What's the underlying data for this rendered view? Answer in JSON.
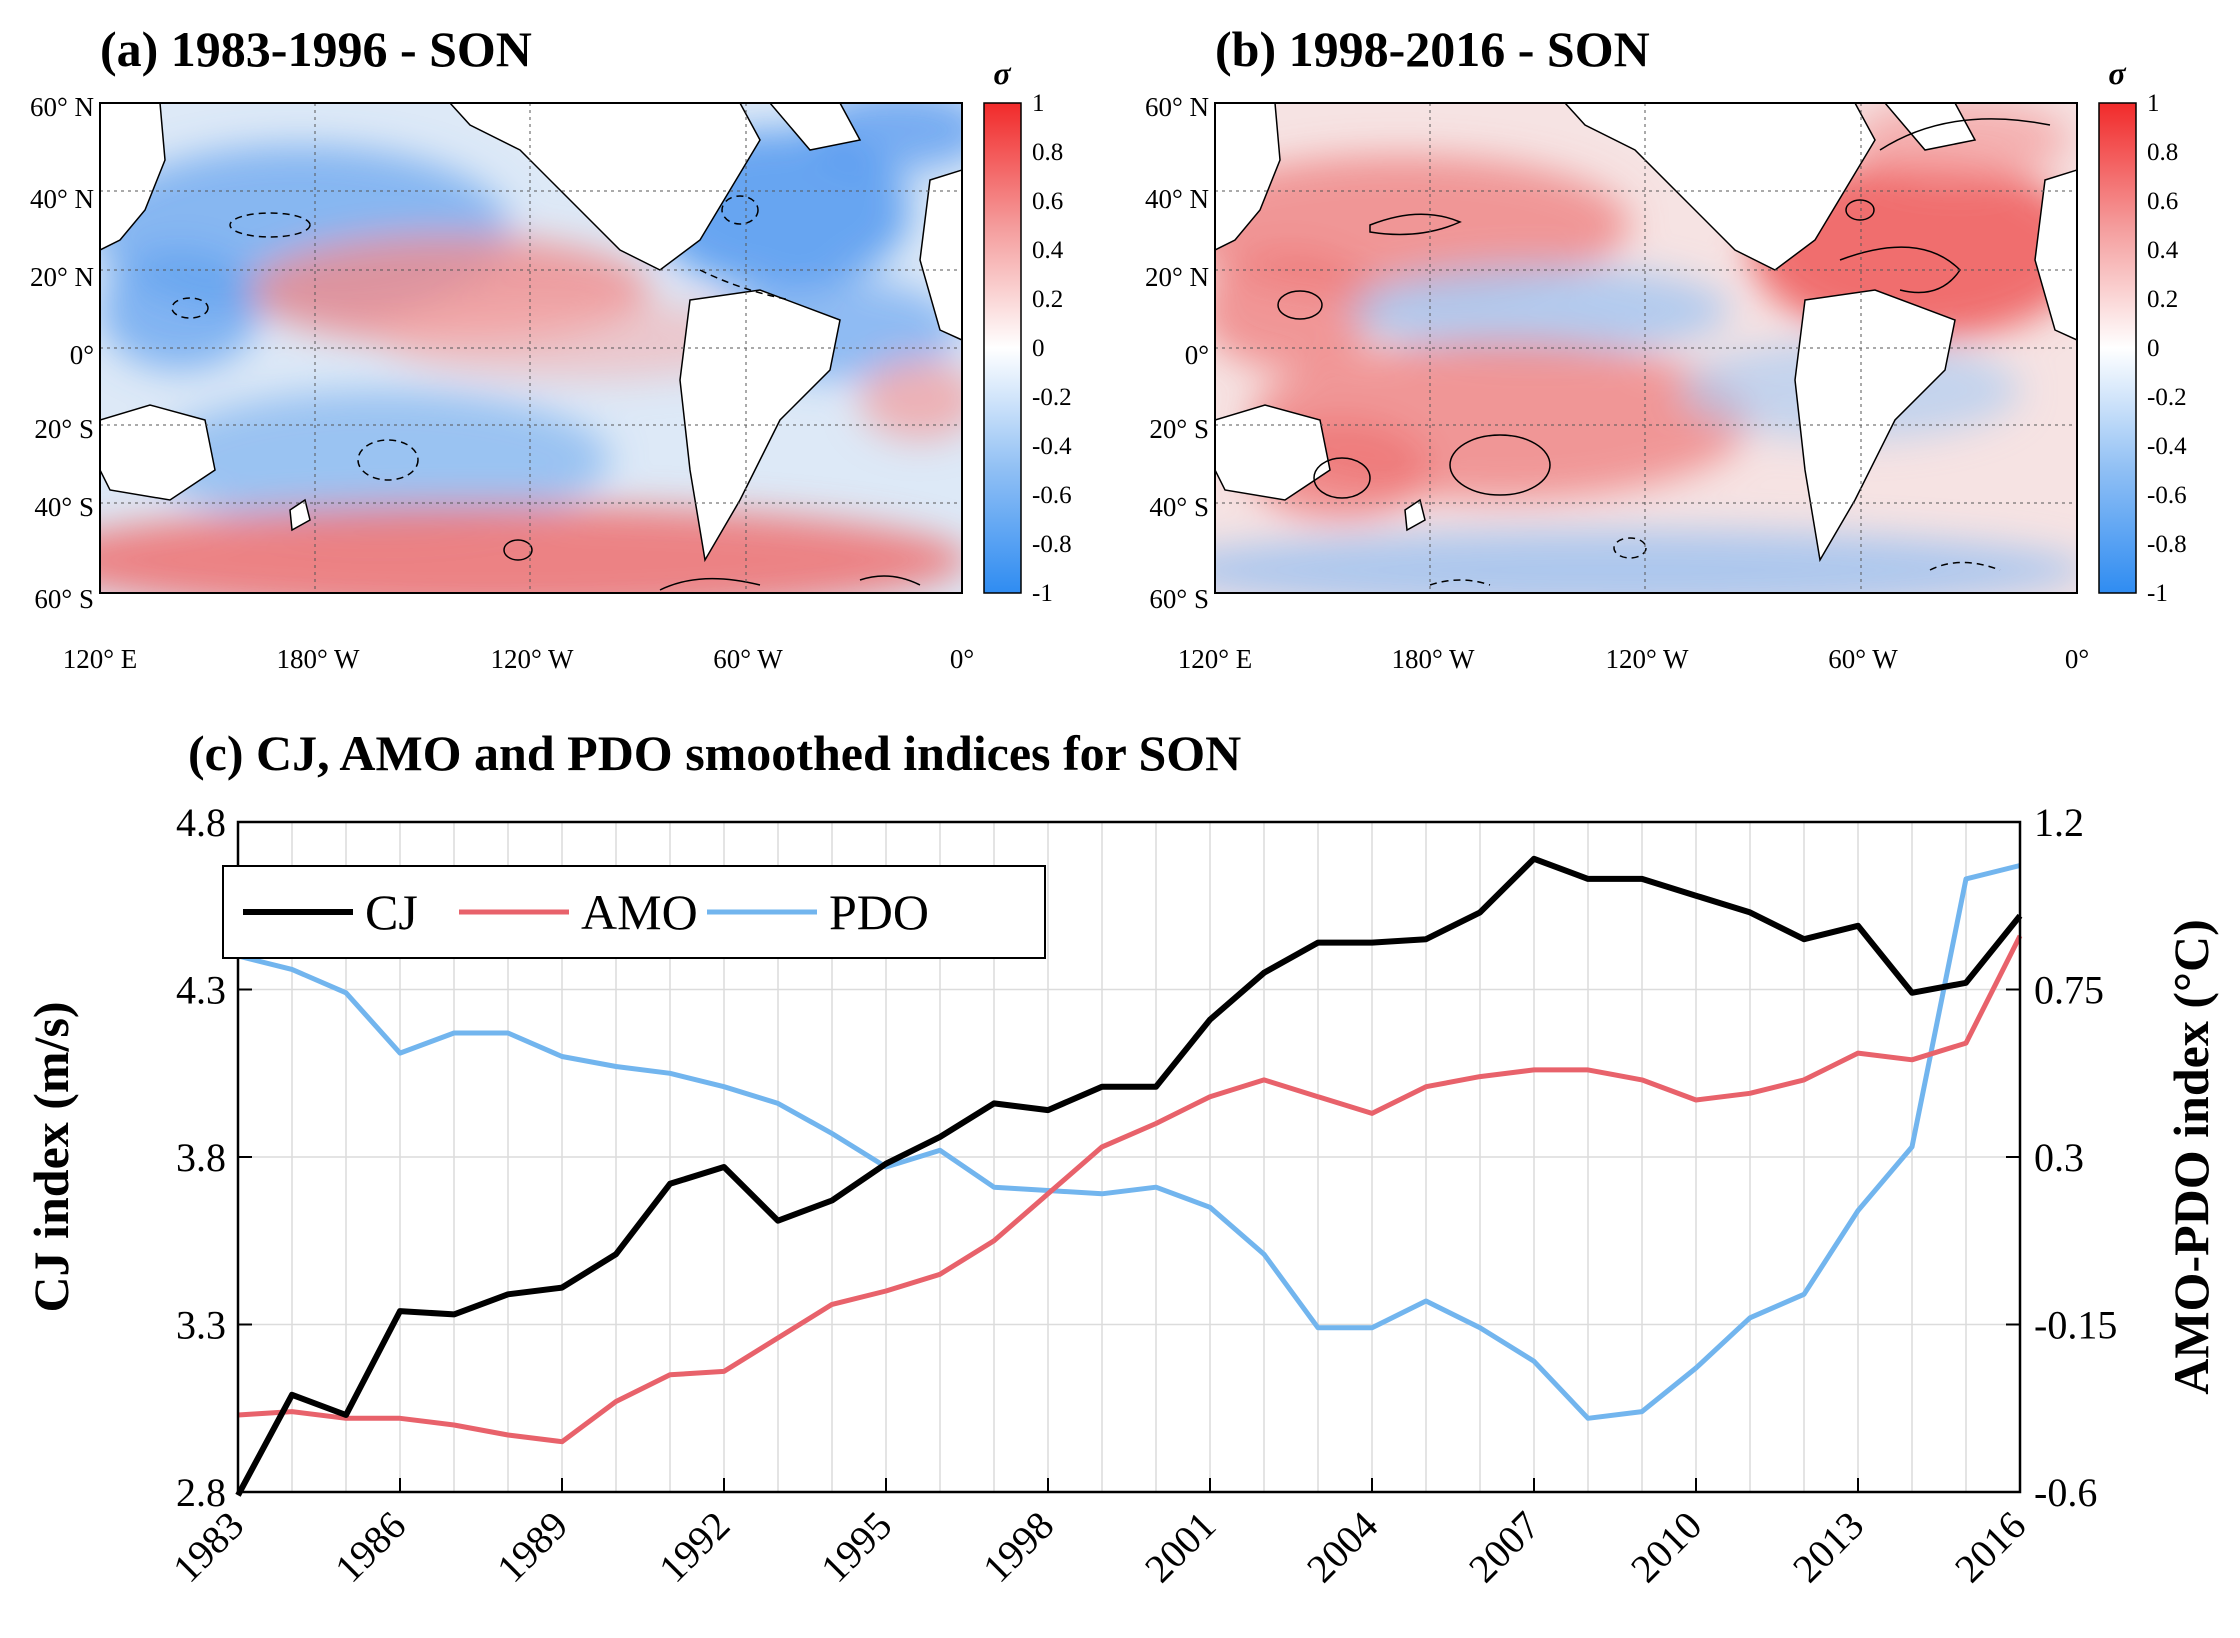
{
  "colors": {
    "cj": "#000000",
    "amo": "#e8626b",
    "pdo": "#72b5ee",
    "positive": "#f22a2a",
    "negative": "#2f8cf2",
    "land": "#ffffff"
  },
  "maps": [
    {
      "title": "(a) 1983-1996 - SON",
      "colorbar_symbol": "σ",
      "colorbar_ticks": [
        "1",
        "0.8",
        "0.6",
        "0.4",
        "0.2",
        "0",
        "-0.2",
        "-0.4",
        "-0.6",
        "-0.8",
        "-1"
      ],
      "lat_labels": [
        "60° N",
        "40° N",
        "20° N",
        "0°",
        "20° S",
        "40° S",
        "60° S"
      ],
      "lon_labels": [
        "120° E",
        "180° W",
        "120° W",
        "60° W",
        "0°"
      ]
    },
    {
      "title": "(b) 1998-2016 - SON",
      "colorbar_symbol": "σ",
      "colorbar_ticks": [
        "1",
        "0.8",
        "0.6",
        "0.4",
        "0.2",
        "0",
        "-0.2",
        "-0.4",
        "-0.6",
        "-0.8",
        "-1"
      ],
      "lat_labels": [
        "60° N",
        "40° N",
        "20° N",
        "0°",
        "20° S",
        "40° S",
        "60° S"
      ],
      "lon_labels": [
        "120° E",
        "180° W",
        "120° W",
        "60° W",
        "0°"
      ]
    }
  ],
  "chart_data": {
    "type": "line",
    "title": "(c) CJ, AMO and PDO smoothed indices for SON",
    "x": [
      1983,
      1984,
      1985,
      1986,
      1987,
      1988,
      1989,
      1990,
      1991,
      1992,
      1993,
      1994,
      1995,
      1996,
      1997,
      1998,
      1999,
      2000,
      2001,
      2002,
      2003,
      2004,
      2005,
      2006,
      2007,
      2008,
      2009,
      2010,
      2011,
      2012,
      2013,
      2014,
      2015,
      2016
    ],
    "x_ticks": [
      "1983",
      "1986",
      "1989",
      "1992",
      "1995",
      "1998",
      "2001",
      "2004",
      "2007",
      "2010",
      "2013",
      "2016"
    ],
    "xlim": [
      1983,
      2016
    ],
    "ylabel_left": "CJ index (m/s)",
    "ylabel_right": "AMO-PDO index (°C)",
    "ylim_left": [
      2.8,
      4.8
    ],
    "ylim_right": [
      -0.6,
      1.2
    ],
    "yticks_left": [
      "4.8",
      "4.3",
      "3.8",
      "3.3",
      "2.8"
    ],
    "yticks_right": [
      "1.2",
      "0.75",
      "0.3",
      "-0.15",
      "-0.6"
    ],
    "grid": true,
    "legend": "top-left",
    "series": [
      {
        "name": "CJ",
        "axis": "left",
        "values": [
          2.79,
          3.09,
          3.03,
          3.34,
          3.33,
          3.39,
          3.41,
          3.51,
          3.72,
          3.77,
          3.61,
          3.67,
          3.78,
          3.86,
          3.96,
          3.94,
          4.01,
          4.01,
          4.21,
          4.35,
          4.44,
          4.44,
          4.45,
          4.53,
          4.69,
          4.63,
          4.63,
          4.58,
          4.53,
          4.45,
          4.49,
          4.29,
          4.32,
          4.52
        ]
      },
      {
        "name": "AMO",
        "axis": "left",
        "values": [
          3.03,
          3.04,
          3.02,
          3.02,
          3.0,
          2.97,
          2.95,
          3.07,
          3.15,
          3.16,
          3.26,
          3.36,
          3.4,
          3.45,
          3.55,
          3.69,
          3.83,
          3.9,
          3.98,
          4.03,
          3.98,
          3.93,
          4.01,
          4.04,
          4.06,
          4.06,
          4.03,
          3.97,
          3.99,
          4.03,
          4.11,
          4.09,
          4.14,
          4.46
        ]
      },
      {
        "name": "PDO",
        "axis": "left",
        "values": [
          4.4,
          4.36,
          4.29,
          4.11,
          4.17,
          4.17,
          4.1,
          4.07,
          4.05,
          4.01,
          3.96,
          3.87,
          3.77,
          3.82,
          3.71,
          3.7,
          3.69,
          3.71,
          3.65,
          3.51,
          3.29,
          3.29,
          3.37,
          3.29,
          3.19,
          3.02,
          3.04,
          3.17,
          3.32,
          3.39,
          3.64,
          3.83,
          4.63,
          4.67
        ]
      }
    ]
  }
}
